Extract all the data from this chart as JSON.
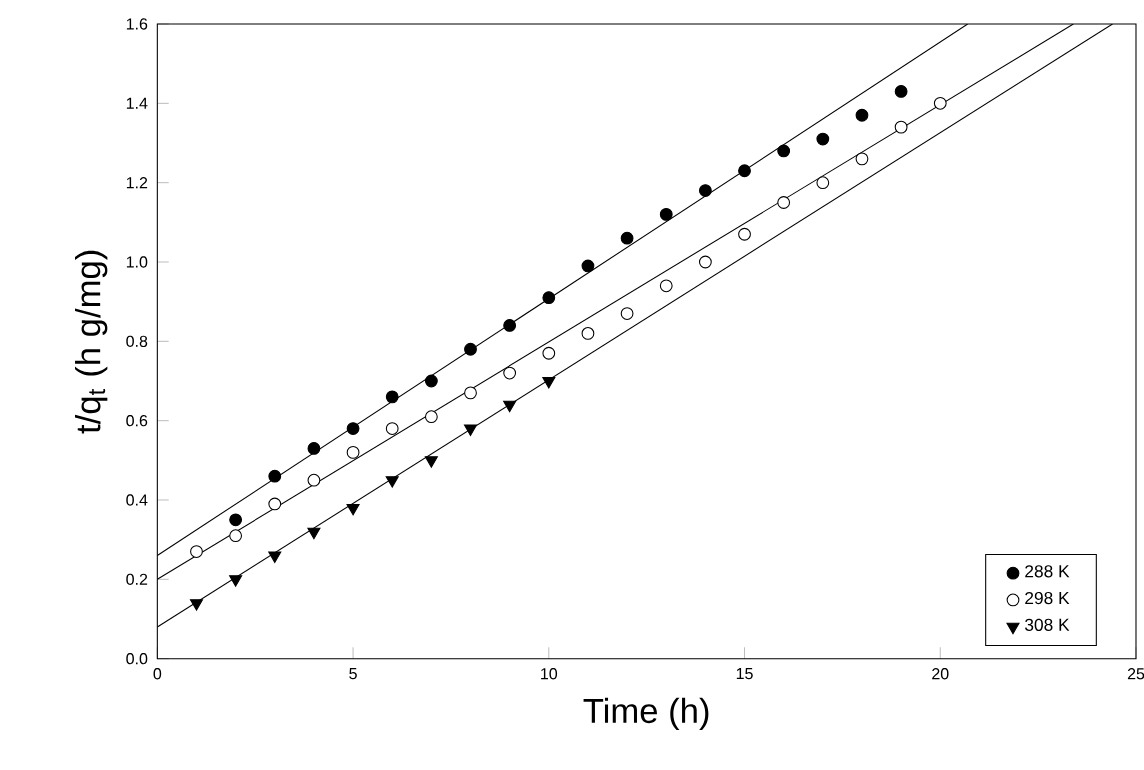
{
  "chart_data": {
    "type": "scatter",
    "xlabel": "Time (h)",
    "ylabel": "t/q$_{t}$ (h g/mg)",
    "xlim": [
      0,
      25
    ],
    "xticks": [
      0,
      5,
      10,
      15,
      20,
      25
    ],
    "ylim": [
      0,
      1.6
    ],
    "yticks": [
      {
        "value": 0,
        "label": "0.0"
      },
      {
        "value": 0.2,
        "label": "0.2"
      },
      {
        "value": 0.4,
        "label": "0.4"
      },
      {
        "value": 0.6,
        "label": "0.6"
      },
      {
        "value": 0.8,
        "label": "0.8"
      },
      {
        "value": 1.0,
        "label": "1.0"
      },
      {
        "value": 1.2,
        "label": "1.2"
      },
      {
        "value": 1.4,
        "label": "1.4"
      },
      {
        "value": 1.6,
        "label": "1.6"
      }
    ],
    "legend": "bottom right",
    "grid": false,
    "series": [
      {
        "name": "288 K",
        "color": "#000000",
        "marker": "circle",
        "x": [
          2,
          3,
          4,
          5,
          6,
          7,
          8,
          9,
          10,
          11,
          12,
          13,
          14,
          15,
          16,
          17,
          18,
          19
        ],
        "values": [
          0.35,
          0.46,
          0.53,
          0.58,
          0.66,
          0.7,
          0.78,
          0.84,
          0.91,
          0.99,
          1.06,
          1.12,
          1.18,
          1.23,
          1.28,
          1.31,
          1.37,
          1.43
        ]
      },
      {
        "name": "298 K",
        "color": "#ffffff",
        "marker": "circle",
        "x": [
          1,
          2,
          3,
          4,
          5,
          6,
          7,
          8,
          9,
          10,
          11,
          12,
          13,
          14,
          15,
          16,
          17,
          18,
          19,
          20
        ],
        "values": [
          0.27,
          0.31,
          0.39,
          0.45,
          0.52,
          0.58,
          0.61,
          0.67,
          0.72,
          0.77,
          0.82,
          0.87,
          0.94,
          1.0,
          1.07,
          1.15,
          1.2,
          1.26,
          1.34,
          1.4
        ]
      },
      {
        "name": "308 K",
        "color": "#000000",
        "marker": "triangle",
        "x": [
          1,
          2,
          3,
          4,
          5,
          6,
          7,
          8,
          9,
          10
        ],
        "values": [
          0.14,
          0.2,
          0.26,
          0.32,
          0.38,
          0.45,
          0.5,
          0.58,
          0.64,
          0.7
        ]
      },
      {
        "type": "line",
        "color": "#000000",
        "marker": "none",
        "x": [
          0,
          20.7
        ],
        "values": [
          0.26,
          1.6
        ]
      },
      {
        "type": "line",
        "color": "#000000",
        "marker": "none",
        "x": [
          0,
          23.4
        ],
        "values": [
          0.2,
          1.6
        ]
      },
      {
        "type": "line",
        "color": "#000000",
        "marker": "none",
        "x": [
          0,
          24.4
        ],
        "values": [
          0.08,
          1.6
        ]
      }
    ]
  }
}
